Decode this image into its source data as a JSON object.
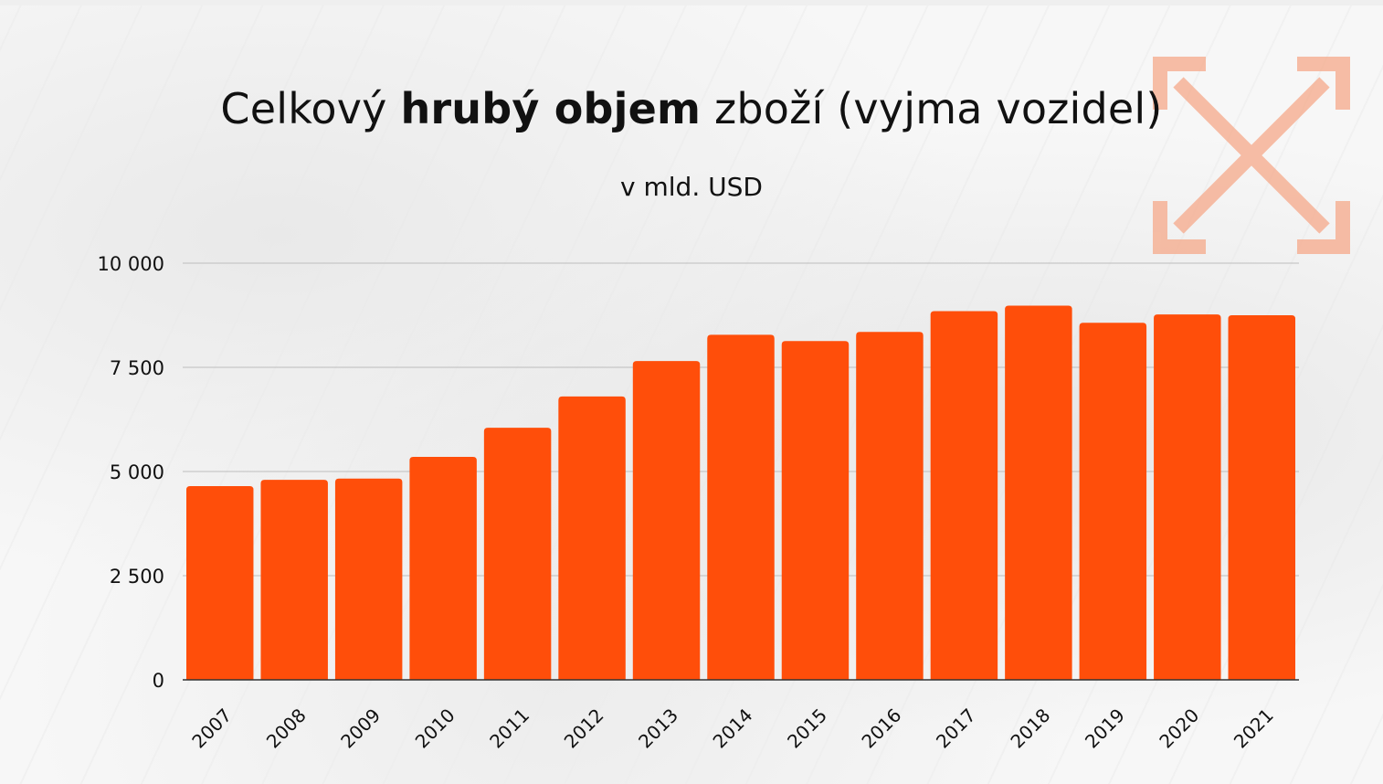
{
  "title": {
    "part1": "Celkový ",
    "bold": "hrubý objem",
    "part2": " zboží (vyjma vozidel)"
  },
  "subtitle": "v mld. USD",
  "colors": {
    "bar": "#ff4e0a",
    "grid": "#bdbdbd",
    "logo": "#f6a98a"
  },
  "logo_icon": "expand-arrows-icon",
  "chart_data": {
    "type": "bar",
    "title": "Celkový hrubý objem zboží (vyjma vozidel)",
    "subtitle": "v mld. USD",
    "xlabel": "",
    "ylabel": "",
    "categories": [
      "2007",
      "2008",
      "2009",
      "2010",
      "2011",
      "2012",
      "2013",
      "2014",
      "2015",
      "2016",
      "2017",
      "2018",
      "2019",
      "2020",
      "2021"
    ],
    "values": [
      4650,
      4800,
      4830,
      5350,
      6050,
      6800,
      7650,
      8280,
      8130,
      8350,
      8850,
      8980,
      8570,
      8770,
      8750
    ],
    "ylim": [
      0,
      10000
    ],
    "yticks": [
      0,
      2500,
      5000,
      7500,
      10000
    ],
    "ytick_labels": [
      "0",
      "2 500",
      "5 000",
      "7 500",
      "10 000"
    ],
    "grid": true,
    "legend": "none"
  }
}
